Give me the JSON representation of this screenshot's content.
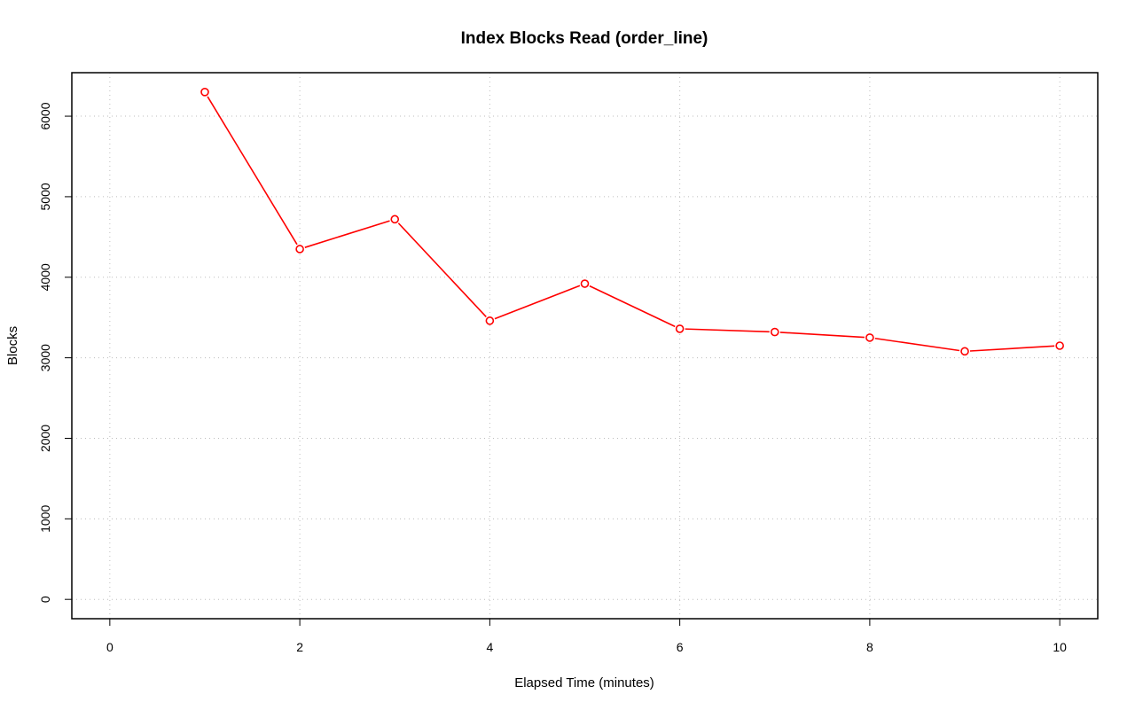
{
  "chart_data": {
    "type": "line",
    "title": "Index Blocks Read (order_line)",
    "xlabel": "Elapsed Time (minutes)",
    "ylabel": "Blocks",
    "xlim": [
      -0.4,
      10.4
    ],
    "ylim": [
      -240,
      6540
    ],
    "xticks": [
      0,
      2,
      4,
      6,
      8,
      10
    ],
    "yticks": [
      0,
      1000,
      2000,
      3000,
      4000,
      5000,
      6000
    ],
    "grid": true,
    "series": [
      {
        "color": "#ff0000",
        "x": [
          1,
          2,
          3,
          4,
          5,
          6,
          7,
          8,
          9,
          10
        ],
        "y": [
          6300,
          4350,
          4720,
          3460,
          3920,
          3360,
          3320,
          3250,
          3080,
          3150
        ]
      }
    ]
  }
}
